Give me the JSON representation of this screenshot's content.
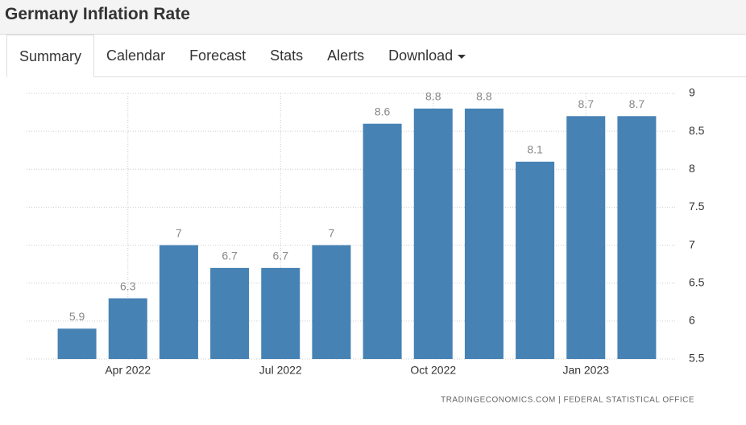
{
  "header": {
    "title": "Germany Inflation Rate"
  },
  "tabs": [
    "Summary",
    "Calendar",
    "Forecast",
    "Stats",
    "Alerts",
    "Download"
  ],
  "chart_data": {
    "type": "bar",
    "categories": [
      null,
      "Apr 2022",
      null,
      null,
      "Jul 2022",
      null,
      null,
      "Oct 2022",
      null,
      null,
      "Jan 2023",
      null
    ],
    "values": [
      5.9,
      6.3,
      7,
      6.7,
      6.7,
      7,
      8.6,
      8.8,
      8.8,
      8.1,
      8.7,
      8.7
    ],
    "color": "#4682b4",
    "ylim": [
      5.5,
      9
    ],
    "yticks": [
      5.5,
      6,
      6.5,
      7,
      7.5,
      8,
      8.5,
      9
    ],
    "grid": true,
    "source": "TRADINGECONOMICS.COM | FEDERAL STATISTICAL OFFICE"
  }
}
